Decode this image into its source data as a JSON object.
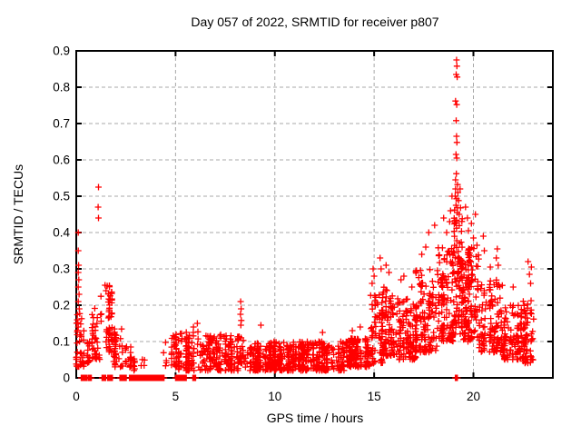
{
  "page": {
    "background": "#ffffff"
  },
  "chart_data": {
    "type": "scatter",
    "title": "Day 057 of 2022, SRMTID for receiver p807",
    "xlabel": "GPS time / hours",
    "ylabel": "SRMTID / TECUs",
    "xlim": [
      0,
      24
    ],
    "ylim": [
      0,
      0.9
    ],
    "xtick_values": [
      0,
      5,
      10,
      15,
      20
    ],
    "xtick_labels": [
      "0",
      "5",
      "10",
      "15",
      "20"
    ],
    "ytick_values": [
      0,
      0.1,
      0.2,
      0.3,
      0.4,
      0.5,
      0.6,
      0.7,
      0.8,
      0.9
    ],
    "ytick_labels": [
      "0",
      "0.1",
      "0.2",
      "0.3",
      "0.4",
      "0.5",
      "0.6",
      "0.7",
      "0.8",
      "0.9"
    ],
    "grid": true,
    "legend": "none",
    "marker": "plus",
    "marker_color": "#ff0000",
    "frame_color": "#000000",
    "grid_color": "#a8a8a8",
    "seed": 5707,
    "clusters": [
      {
        "x0": 0.02,
        "x1": 0.45,
        "n": 40,
        "lo": 0.03,
        "hi": 0.18,
        "k": 1.5
      },
      {
        "x0": 0.45,
        "x1": 0.72,
        "n": 15,
        "lo": 0.04,
        "hi": 0.1,
        "k": 1.4
      },
      {
        "x0": 0.72,
        "x1": 1.15,
        "n": 35,
        "lo": 0.05,
        "hi": 0.2,
        "k": 1.5
      },
      {
        "x0": 1.15,
        "x1": 1.8,
        "n": 55,
        "lo": 0.07,
        "hi": 0.26,
        "k": 1.3
      },
      {
        "x0": 1.8,
        "x1": 2.4,
        "n": 35,
        "lo": 0.03,
        "hi": 0.14,
        "k": 1.5
      },
      {
        "x0": 2.4,
        "x1": 3.0,
        "n": 28,
        "lo": 0.02,
        "hi": 0.1,
        "k": 1.4
      },
      {
        "x0": 3.0,
        "x1": 4.4,
        "n": 4,
        "lo": 0.03,
        "hi": 0.06,
        "k": 1.2
      },
      {
        "x0": 4.4,
        "x1": 5.15,
        "n": 42,
        "lo": 0.03,
        "hi": 0.12,
        "k": 1.4
      },
      {
        "x0": 5.15,
        "x1": 6.3,
        "n": 85,
        "lo": 0.02,
        "hi": 0.13,
        "k": 1.5
      },
      {
        "x0": 6.3,
        "x1": 8.15,
        "n": 175,
        "lo": 0.02,
        "hi": 0.12,
        "k": 1.6
      },
      {
        "x0": 8.15,
        "x1": 8.45,
        "n": 26,
        "lo": 0.04,
        "hi": 0.12,
        "k": 1.4
      },
      {
        "x0": 8.45,
        "x1": 11.0,
        "n": 265,
        "lo": 0.02,
        "hi": 0.1,
        "k": 1.55
      },
      {
        "x0": 11.0,
        "x1": 13.5,
        "n": 265,
        "lo": 0.02,
        "hi": 0.1,
        "k": 1.55
      },
      {
        "x0": 13.5,
        "x1": 14.8,
        "n": 135,
        "lo": 0.03,
        "hi": 0.11,
        "k": 1.45
      },
      {
        "x0": 14.8,
        "x1": 15.4,
        "n": 70,
        "lo": 0.04,
        "hi": 0.23,
        "k": 1.45
      },
      {
        "x0": 15.4,
        "x1": 16.1,
        "n": 90,
        "lo": 0.06,
        "hi": 0.25,
        "k": 1.35
      },
      {
        "x0": 16.1,
        "x1": 17.1,
        "n": 110,
        "lo": 0.05,
        "hi": 0.22,
        "k": 1.4
      },
      {
        "x0": 17.1,
        "x1": 18.2,
        "n": 130,
        "lo": 0.07,
        "hi": 0.3,
        "k": 1.35
      },
      {
        "x0": 18.2,
        "x1": 19.0,
        "n": 120,
        "lo": 0.1,
        "hi": 0.36,
        "k": 1.3
      },
      {
        "x0": 19.0,
        "x1": 19.45,
        "n": 90,
        "lo": 0.12,
        "hi": 0.44,
        "k": 1.25
      },
      {
        "x0": 19.45,
        "x1": 20.3,
        "n": 130,
        "lo": 0.1,
        "hi": 0.36,
        "k": 1.3
      },
      {
        "x0": 20.3,
        "x1": 21.5,
        "n": 120,
        "lo": 0.07,
        "hi": 0.27,
        "k": 1.35
      },
      {
        "x0": 21.5,
        "x1": 22.4,
        "n": 90,
        "lo": 0.05,
        "hi": 0.2,
        "k": 1.4
      },
      {
        "x0": 22.4,
        "x1": 23.05,
        "n": 80,
        "lo": 0.04,
        "hi": 0.22,
        "k": 1.35
      }
    ],
    "outliers": [
      [
        0.1,
        0.4
      ],
      [
        0.1,
        0.35
      ],
      [
        0.12,
        0.31
      ],
      [
        0.1,
        0.29
      ],
      [
        0.13,
        0.27
      ],
      [
        0.1,
        0.25
      ],
      [
        0.14,
        0.23
      ],
      [
        0.1,
        0.21
      ],
      [
        0.15,
        0.19
      ],
      [
        1.12,
        0.525
      ],
      [
        1.1,
        0.47
      ],
      [
        1.12,
        0.44
      ],
      [
        1.45,
        0.255
      ],
      [
        1.5,
        0.24
      ],
      [
        5.9,
        0.14
      ],
      [
        6.1,
        0.15
      ],
      [
        8.28,
        0.21
      ],
      [
        8.3,
        0.19
      ],
      [
        8.27,
        0.175
      ],
      [
        8.31,
        0.158
      ],
      [
        8.29,
        0.145
      ],
      [
        9.3,
        0.145
      ],
      [
        12.4,
        0.125
      ],
      [
        13.9,
        0.13
      ],
      [
        14.3,
        0.14
      ],
      [
        14.95,
        0.3
      ],
      [
        15.0,
        0.28
      ],
      [
        14.9,
        0.26
      ],
      [
        15.3,
        0.33
      ],
      [
        15.35,
        0.3
      ],
      [
        15.6,
        0.31
      ],
      [
        15.75,
        0.29
      ],
      [
        16.35,
        0.27
      ],
      [
        16.5,
        0.28
      ],
      [
        16.9,
        0.25
      ],
      [
        17.4,
        0.34
      ],
      [
        17.6,
        0.36
      ],
      [
        17.75,
        0.4
      ],
      [
        18.05,
        0.42
      ],
      [
        18.5,
        0.44
      ],
      [
        18.65,
        0.4
      ],
      [
        18.8,
        0.43
      ],
      [
        18.85,
        0.46
      ],
      [
        18.92,
        0.5
      ],
      [
        19.15,
        0.875
      ],
      [
        19.17,
        0.858
      ],
      [
        19.13,
        0.835
      ],
      [
        19.18,
        0.828
      ],
      [
        19.1,
        0.762
      ],
      [
        19.16,
        0.752
      ],
      [
        19.13,
        0.708
      ],
      [
        19.15,
        0.665
      ],
      [
        19.17,
        0.648
      ],
      [
        19.12,
        0.615
      ],
      [
        19.16,
        0.605
      ],
      [
        19.14,
        0.562
      ],
      [
        19.1,
        0.545
      ],
      [
        19.2,
        0.532
      ],
      [
        19.1,
        0.52
      ],
      [
        19.22,
        0.51
      ],
      [
        19.08,
        0.5
      ],
      [
        19.15,
        0.493
      ],
      [
        19.25,
        0.488
      ],
      [
        19.12,
        0.475
      ],
      [
        19.2,
        0.468
      ],
      [
        19.05,
        0.462
      ],
      [
        19.18,
        0.455
      ],
      [
        19.28,
        0.45
      ],
      [
        19.33,
        0.52
      ],
      [
        19.35,
        0.468
      ],
      [
        19.6,
        0.47
      ],
      [
        19.7,
        0.44
      ],
      [
        19.75,
        0.405
      ],
      [
        19.9,
        0.425
      ],
      [
        20.0,
        0.385
      ],
      [
        20.1,
        0.45
      ],
      [
        20.18,
        0.365
      ],
      [
        20.5,
        0.39
      ],
      [
        20.55,
        0.35
      ],
      [
        20.85,
        0.305
      ],
      [
        21.2,
        0.355
      ],
      [
        21.15,
        0.33
      ],
      [
        21.25,
        0.31
      ],
      [
        22.0,
        0.25
      ],
      [
        22.75,
        0.32
      ],
      [
        22.82,
        0.285
      ],
      [
        22.88,
        0.26
      ],
      [
        22.92,
        0.305
      ]
    ],
    "zero_runs": [
      [
        0.25,
        0.57
      ],
      [
        0.62,
        0.78
      ],
      [
        1.3,
        1.5
      ],
      [
        1.58,
        1.83
      ],
      [
        2.2,
        2.38
      ],
      [
        2.42,
        2.52
      ],
      [
        2.68,
        2.93
      ],
      [
        2.98,
        4.42
      ],
      [
        5.0,
        5.17
      ],
      [
        5.22,
        5.55
      ],
      [
        5.87,
        6.02
      ],
      [
        19.09,
        19.19
      ]
    ]
  }
}
